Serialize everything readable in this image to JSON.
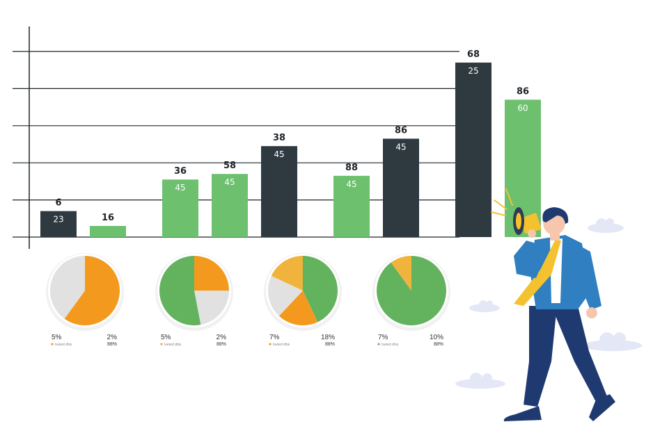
{
  "chart_data": [
    {
      "type": "bar",
      "grid": true,
      "ylim": [
        0,
        100
      ],
      "groups": [
        {
          "bars": [
            {
              "color": "#2f3940",
              "value": 14,
              "top_label": "6",
              "inner_label": "23"
            },
            {
              "color": "#6cc06e",
              "value": 6,
              "top_label": "16",
              "inner_label": ""
            }
          ]
        },
        {
          "bars": [
            {
              "color": "#6cc06e",
              "value": 31,
              "top_label": "36",
              "inner_label": "45"
            },
            {
              "color": "#6cc06e",
              "value": 34,
              "top_label": "58",
              "inner_label": "45"
            },
            {
              "color": "#2f3940",
              "value": 49,
              "top_label": "38",
              "inner_label": "45"
            }
          ]
        },
        {
          "bars": [
            {
              "color": "#6cc06e",
              "value": 33,
              "top_label": "88",
              "inner_label": "45"
            },
            {
              "color": "#2f3940",
              "value": 53,
              "top_label": "86",
              "inner_label": "45"
            }
          ]
        },
        {
          "bars": [
            {
              "color": "#2f3940",
              "value": 94,
              "top_label": "68",
              "inner_label": "25"
            },
            {
              "color": "#6cc06e",
              "value": 74,
              "top_label": "86",
              "inner_label": "60"
            }
          ]
        }
      ]
    },
    {
      "type": "pie",
      "pies": [
        {
          "left_pct": "5%",
          "right_pct": "2%",
          "right_sub": "88%",
          "legend_color": "#f39a1e",
          "legend_text": "Iseted dhis",
          "slices": [
            {
              "value": 60,
              "color": "#f39a1e"
            },
            {
              "value": 40,
              "color": "#e1e1e1"
            }
          ]
        },
        {
          "left_pct": "5%",
          "right_pct": "2%",
          "right_sub": "88%",
          "legend_color": "#e8b13a",
          "legend_text": "Iseted dbis",
          "slices": [
            {
              "value": 25,
              "color": "#f39a1e"
            },
            {
              "value": 22,
              "color": "#e1e1e1"
            },
            {
              "value": 53,
              "color": "#63b35e"
            }
          ]
        },
        {
          "left_pct": "7%",
          "right_pct": "18%",
          "right_sub": "88%",
          "legend_color": "#f39a1e",
          "legend_text": "Iseted dhis",
          "slices": [
            {
              "value": 43,
              "color": "#63b35e"
            },
            {
              "value": 19,
              "color": "#f39a1e"
            },
            {
              "value": 20,
              "color": "#e1e1e1"
            },
            {
              "value": 18,
              "color": "#f0b43c"
            }
          ]
        },
        {
          "left_pct": "7%",
          "right_pct": "10%",
          "right_sub": "88%",
          "legend_color": "#999999",
          "legend_text": "Iseted dhis",
          "slices": [
            {
              "value": 90,
              "color": "#63b35e"
            },
            {
              "value": 10,
              "color": "#f0b43c"
            }
          ]
        }
      ]
    }
  ],
  "illustration": {
    "subject": "businessman-with-megaphone",
    "suit_color": "#2f7fc1",
    "trousers_color": "#1f3a70",
    "tie_color": "#f4c22e",
    "megaphone_color": "#f4c22e",
    "cloud_color": "#e3e7f6"
  }
}
